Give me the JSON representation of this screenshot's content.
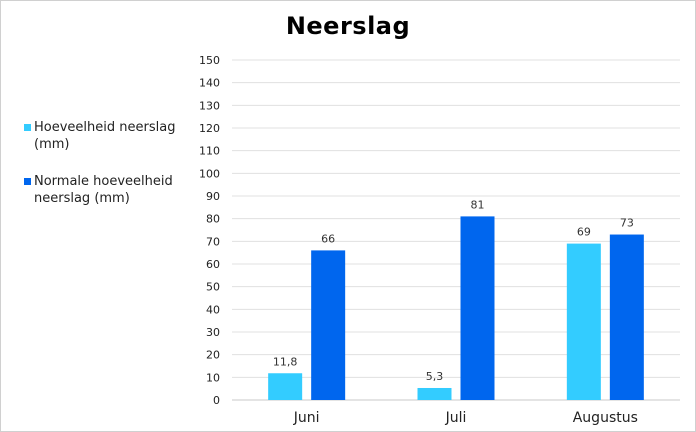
{
  "chart_data": {
    "type": "bar",
    "title": "Neerslag",
    "categories": [
      "Juni",
      "Juli",
      "Augustus"
    ],
    "series": [
      {
        "name": "Hoeveelheid neerslag (mm)",
        "color": "#33ccff",
        "values": [
          11.8,
          5.3,
          69
        ],
        "labels": [
          "11,8",
          "5,3",
          "69"
        ]
      },
      {
        "name": "Normale hoeveelheid neerslag (mm)",
        "color": "#0066ee",
        "values": [
          66,
          81,
          73
        ],
        "labels": [
          "66",
          "81",
          "73"
        ]
      }
    ],
    "ylim": [
      0,
      150
    ],
    "yticks": [
      0,
      10,
      20,
      30,
      40,
      50,
      60,
      70,
      80,
      90,
      100,
      110,
      120,
      130,
      140,
      150
    ],
    "grid": true,
    "legend_position": "left"
  }
}
